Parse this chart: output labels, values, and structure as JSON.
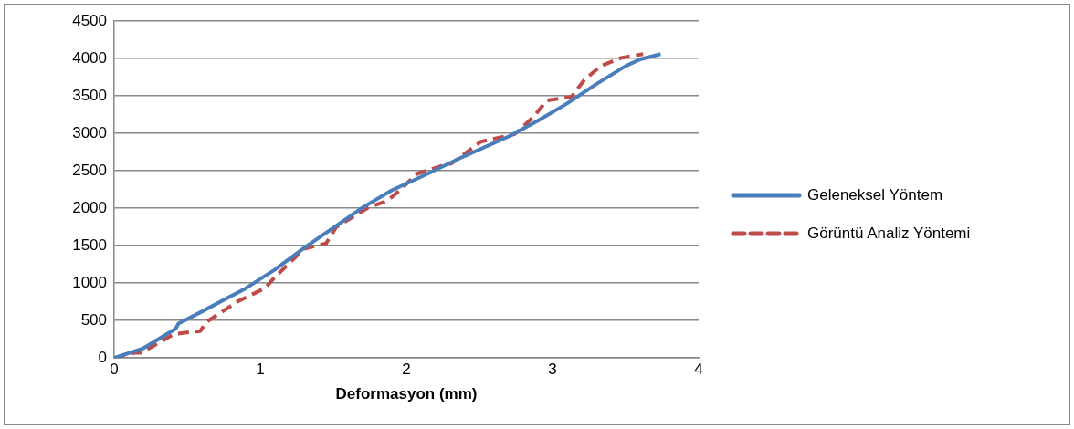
{
  "chart_data": {
    "type": "line",
    "xlabel": "Deformasyon (mm)",
    "xlim": [
      0,
      4
    ],
    "xticks": [
      0,
      1,
      2,
      3,
      4
    ],
    "ylim": [
      0,
      4500
    ],
    "yticks": [
      0,
      500,
      1000,
      1500,
      2000,
      2500,
      3000,
      3500,
      4000,
      4500
    ],
    "grid": "y",
    "legend": "right",
    "marker": "none",
    "series": [
      {
        "name": "Geleneksel Yöntem",
        "color": "#4a7ebb",
        "line_style": "solid",
        "x": [
          0,
          0.2,
          0.42,
          0.44,
          0.6,
          0.9,
          1.1,
          1.3,
          1.5,
          1.7,
          1.9,
          2.1,
          2.4,
          2.7,
          2.9,
          3.1,
          3.3,
          3.5,
          3.6,
          3.74
        ],
        "values": [
          0,
          130,
          390,
          460,
          620,
          930,
          1180,
          1470,
          1740,
          2010,
          2240,
          2420,
          2700,
          2960,
          3170,
          3400,
          3660,
          3900,
          3990,
          4060
        ]
      },
      {
        "name": "Görüntü Analiz Yöntemi",
        "color": "#be4b48",
        "line_style": "dashed",
        "x": [
          0,
          0.14,
          0.18,
          0.25,
          0.41,
          0.59,
          0.63,
          0.85,
          1.03,
          1.1,
          1.3,
          1.45,
          1.52,
          1.74,
          1.87,
          1.96,
          2.07,
          2.23,
          2.31,
          2.51,
          2.74,
          2.87,
          2.96,
          3.13,
          3.22,
          3.33,
          3.47,
          3.62
        ],
        "values": [
          0,
          70,
          70,
          140,
          320,
          360,
          480,
          760,
          930,
          1080,
          1460,
          1530,
          1750,
          2010,
          2100,
          2250,
          2460,
          2560,
          2600,
          2890,
          2990,
          3220,
          3440,
          3490,
          3720,
          3900,
          4010,
          4060
        ]
      }
    ]
  }
}
